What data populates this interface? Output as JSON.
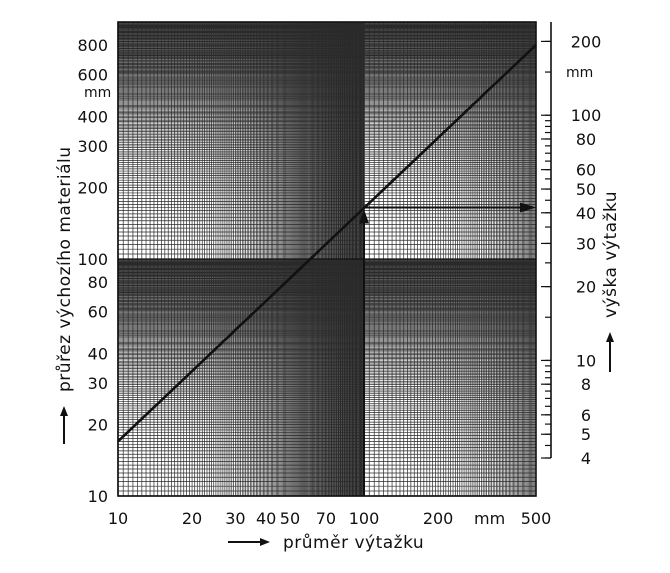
{
  "chart_data": {
    "type": "line",
    "title": "",
    "xlabel": "průměr výtažku",
    "ylabel": "průřez výchozího materiálu",
    "y2label": "výška výtažku",
    "x_unit": "mm",
    "y_unit": "mm",
    "y2_unit": "mm",
    "x_scale": "log",
    "y_scale": "log",
    "y2_scale": "log",
    "grid": true,
    "xlim": [
      10,
      500
    ],
    "ylim": [
      10,
      1000
    ],
    "y2lim": [
      4,
      240
    ],
    "x_ticks": [
      10,
      20,
      30,
      40,
      50,
      70,
      100,
      200,
      500
    ],
    "x_tick_labels": [
      "10",
      "20",
      "30",
      "40",
      "50",
      "70",
      "100",
      "200",
      "500"
    ],
    "y_ticks": [
      10,
      20,
      30,
      40,
      60,
      80,
      100,
      200,
      300,
      400,
      600,
      800
    ],
    "y_tick_labels": [
      "10",
      "20",
      "30",
      "40",
      "60",
      "80",
      "100",
      "200",
      "300",
      "400",
      "600",
      "800"
    ],
    "y2_ticks": [
      4,
      5,
      6,
      8,
      10,
      20,
      30,
      40,
      50,
      60,
      80,
      100,
      200
    ],
    "y2_tick_labels": [
      "4",
      "5",
      "6",
      "8",
      "10",
      "20",
      "30",
      "40",
      "50",
      "60",
      "80",
      "100",
      "200"
    ],
    "series": [
      {
        "x": [
          10,
          500
        ],
        "y": [
          17,
          800
        ]
      }
    ],
    "example": {
      "x": 100,
      "y": 165,
      "y2": 44
    }
  }
}
